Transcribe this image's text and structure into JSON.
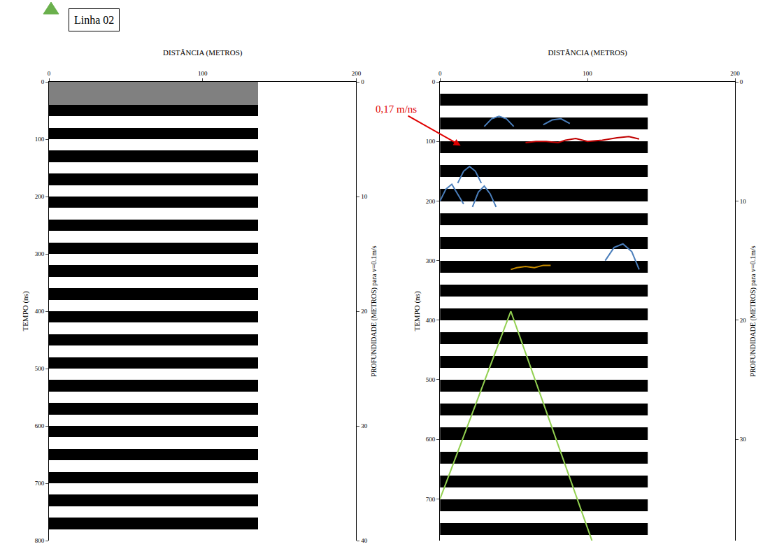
{
  "title": "Linha 02",
  "chart_data": [
    {
      "type": "heatmap",
      "xlabel": "DISTÂNCIA (METROS)",
      "ylabel": "TEMPO (ns)",
      "y2label": "PROFUNDIDADE (METROS) para v=0.1m/s",
      "xlim": [
        0,
        200
      ],
      "xticks": [
        0,
        100,
        200
      ],
      "ylim": [
        800,
        0
      ],
      "yticks": [
        0,
        100,
        200,
        300,
        400,
        500,
        600,
        700,
        800
      ],
      "y2lim": [
        40,
        0
      ],
      "y2ticks": [
        0,
        10,
        20,
        30,
        40
      ],
      "cells": {
        "x": [
          0,
          136
        ],
        "y": [
          0,
          20,
          40,
          60,
          80,
          100,
          120,
          140,
          160,
          180,
          200,
          220,
          240,
          260,
          280,
          300,
          320,
          340,
          360,
          380,
          400,
          420,
          440,
          460,
          480,
          500,
          520,
          540,
          560,
          580,
          600,
          620,
          640,
          660,
          680,
          700,
          720,
          740,
          760,
          780,
          800
        ],
        "z": [
          [
            0
          ],
          [
            0
          ],
          [
            -1
          ],
          [
            1
          ],
          [
            -1
          ],
          [
            1
          ],
          [
            -1
          ],
          [
            1
          ],
          [
            -1
          ],
          [
            1
          ],
          [
            -1
          ],
          [
            1
          ],
          [
            -1
          ],
          [
            1
          ],
          [
            -1
          ],
          [
            1
          ],
          [
            -1
          ],
          [
            1
          ],
          [
            -1
          ],
          [
            1
          ],
          [
            -1
          ],
          [
            1
          ],
          [
            -1
          ],
          [
            1
          ],
          [
            -1
          ],
          [
            1
          ],
          [
            -1
          ],
          [
            1
          ],
          [
            -1
          ],
          [
            1
          ],
          [
            -1
          ],
          [
            1
          ],
          [
            -1
          ],
          [
            1
          ],
          [
            -1
          ],
          [
            1
          ],
          [
            -1
          ],
          [
            1
          ],
          [
            -1
          ],
          [
            1
          ]
        ]
      },
      "zlim": [
        -1,
        1
      ],
      "series": [],
      "annotations": []
    },
    {
      "type": "heatmap",
      "xlabel": "DISTÂNCIA (METROS)",
      "ylabel": "TEMPO (ns)",
      "y2label": "PROFUNDIDADE (METROS) para v=0.1m/s",
      "xlim": [
        0,
        200
      ],
      "xticks": [
        0,
        100,
        200
      ],
      "ylim": [
        770,
        0
      ],
      "yticks": [
        0,
        100,
        200,
        300,
        400,
        500,
        600,
        700
      ],
      "y2lim": [
        38.5,
        0
      ],
      "y2ticks": [
        0,
        10,
        20,
        30
      ],
      "cells": {
        "x": [
          0,
          141
        ],
        "y": [
          0,
          20,
          40,
          60,
          80,
          100,
          120,
          140,
          160,
          180,
          200,
          220,
          240,
          260,
          280,
          300,
          320,
          340,
          360,
          380,
          400,
          420,
          440,
          460,
          480,
          500,
          520,
          540,
          560,
          580,
          600,
          620,
          640,
          660,
          680,
          700,
          720,
          740,
          760,
          780
        ],
        "z": [
          [
            1
          ],
          [
            -1
          ],
          [
            1
          ],
          [
            -1
          ],
          [
            1
          ],
          [
            -1
          ],
          [
            1
          ],
          [
            -1
          ],
          [
            1
          ],
          [
            -1
          ],
          [
            1
          ],
          [
            -1
          ],
          [
            1
          ],
          [
            -1
          ],
          [
            1
          ],
          [
            -1
          ],
          [
            1
          ],
          [
            -1
          ],
          [
            1
          ],
          [
            -1
          ],
          [
            1
          ],
          [
            -1
          ],
          [
            1
          ],
          [
            -1
          ],
          [
            1
          ],
          [
            -1
          ],
          [
            1
          ],
          [
            -1
          ],
          [
            1
          ],
          [
            -1
          ],
          [
            1
          ],
          [
            -1
          ],
          [
            1
          ],
          [
            -1
          ],
          [
            1
          ],
          [
            -1
          ],
          [
            1
          ],
          [
            -1
          ],
          [
            1
          ]
        ]
      },
      "zlim": [
        -1,
        1
      ],
      "series": [
        {
          "type": "line",
          "color": "#c00000",
          "x": [
            58,
            65,
            72,
            80,
            85,
            92,
            100,
            110,
            120,
            128,
            135
          ],
          "values": [
            102,
            100,
            100,
            102,
            98,
            95,
            100,
            98,
            94,
            92,
            96
          ]
        },
        {
          "type": "line",
          "color": "#c58a00",
          "x": [
            48,
            52,
            58,
            64,
            70,
            75
          ],
          "values": [
            315,
            312,
            310,
            312,
            308,
            308
          ]
        },
        {
          "type": "line",
          "color": "#92d050",
          "x": [
            0,
            48
          ],
          "values": [
            700,
            385
          ]
        },
        {
          "type": "line",
          "color": "#92d050",
          "x": [
            48,
            103
          ],
          "values": [
            385,
            770
          ]
        },
        {
          "type": "line",
          "color": "#4a7ebb",
          "x": [
            0,
            4,
            8,
            12,
            16
          ],
          "values": [
            200,
            180,
            172,
            188,
            205
          ]
        },
        {
          "type": "line",
          "color": "#4a7ebb",
          "x": [
            12,
            16,
            20,
            24,
            28
          ],
          "values": [
            170,
            150,
            142,
            150,
            170
          ]
        },
        {
          "type": "line",
          "color": "#4a7ebb",
          "x": [
            22,
            26,
            30,
            34,
            38
          ],
          "values": [
            210,
            185,
            175,
            188,
            210
          ]
        },
        {
          "type": "line",
          "color": "#4a7ebb",
          "x": [
            30,
            35,
            40,
            45,
            50
          ],
          "values": [
            75,
            62,
            58,
            62,
            75
          ]
        },
        {
          "type": "line",
          "color": "#4a7ebb",
          "x": [
            70,
            76,
            82,
            88
          ],
          "values": [
            72,
            64,
            62,
            70
          ]
        },
        {
          "type": "line",
          "color": "#4a7ebb",
          "x": [
            112,
            118,
            124,
            130,
            135
          ],
          "values": [
            300,
            278,
            272,
            285,
            315
          ]
        }
      ],
      "annotations": [
        {
          "text": "0,17 m/ns",
          "x": 14,
          "y": 107,
          "color": "#e00000"
        }
      ]
    }
  ]
}
